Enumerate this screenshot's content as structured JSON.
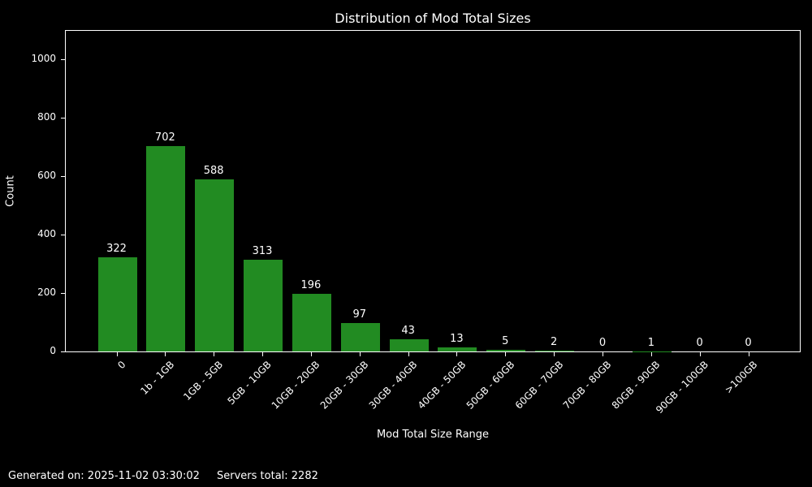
{
  "title": "Distribution of Mod Total Sizes",
  "footer": {
    "generated": "Generated on: 2025-11-02 03:30:02",
    "servers_total": "Servers total: 2282"
  },
  "chart_data": {
    "type": "bar",
    "title": "Distribution of Mod Total Sizes",
    "xlabel": "Mod Total Size Range",
    "ylabel": "Count",
    "categories": [
      "0",
      "1b - 1GB",
      "1GB - 5GB",
      "5GB - 10GB",
      "10GB - 20GB",
      "20GB - 30GB",
      "30GB - 40GB",
      "40GB - 50GB",
      "50GB - 60GB",
      "60GB - 70GB",
      "70GB - 80GB",
      "80GB - 90GB",
      "90GB - 100GB",
      ">100GB"
    ],
    "values": [
      322,
      702,
      588,
      313,
      196,
      97,
      43,
      13,
      5,
      2,
      0,
      1,
      0,
      0
    ],
    "bar_labels_shown": true,
    "yticks": [
      0,
      200,
      400,
      600,
      800,
      1000
    ],
    "ylim": [
      0,
      1100
    ],
    "grid": false,
    "legend_position": "none",
    "xtick_rotation_deg": 45,
    "colors": {
      "bar": "#228B22",
      "background": "#000000",
      "text": "#ffffff",
      "axis": "#ffffff"
    }
  }
}
